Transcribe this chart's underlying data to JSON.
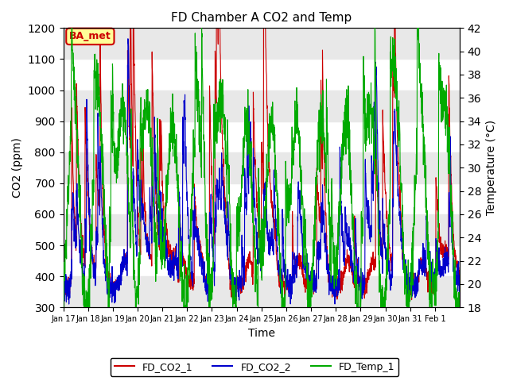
{
  "title": "FD Chamber A CO2 and Temp",
  "xlabel": "Time",
  "ylabel_left": "CO2 (ppm)",
  "ylabel_right": "Temperature (°C)",
  "ylim_left": [
    300,
    1200
  ],
  "ylim_right": [
    18,
    42
  ],
  "yticks_left": [
    300,
    400,
    500,
    600,
    700,
    800,
    900,
    1000,
    1100,
    1200
  ],
  "yticks_right": [
    18,
    20,
    22,
    24,
    26,
    28,
    30,
    32,
    34,
    36,
    38,
    40,
    42
  ],
  "xtick_positions": [
    0,
    1,
    2,
    3,
    4,
    5,
    6,
    7,
    8,
    9,
    10,
    11,
    12,
    13,
    14,
    15
  ],
  "xtick_labels": [
    "Jan 17",
    "Jan 18",
    "Jan 19",
    "Jan 20",
    "Jan 21",
    "Jan 22",
    "Jan 23",
    "Jan 24",
    "Jan 25",
    "Jan 26",
    "Jan 27",
    "Jan 28",
    "Jan 29",
    "Jan 30",
    "Jan 31",
    "Feb 1"
  ],
  "color_co2_1": "#cc0000",
  "color_co2_2": "#0000cc",
  "color_temp": "#00aa00",
  "legend_labels": [
    "FD_CO2_1",
    "FD_CO2_2",
    "FD_Temp_1"
  ],
  "annotation_text": "BA_met",
  "annotation_color": "#cc0000",
  "annotation_bg": "#ffff99",
  "bg_band_color": "#e8e8e8",
  "n_days": 16,
  "seed": 42
}
